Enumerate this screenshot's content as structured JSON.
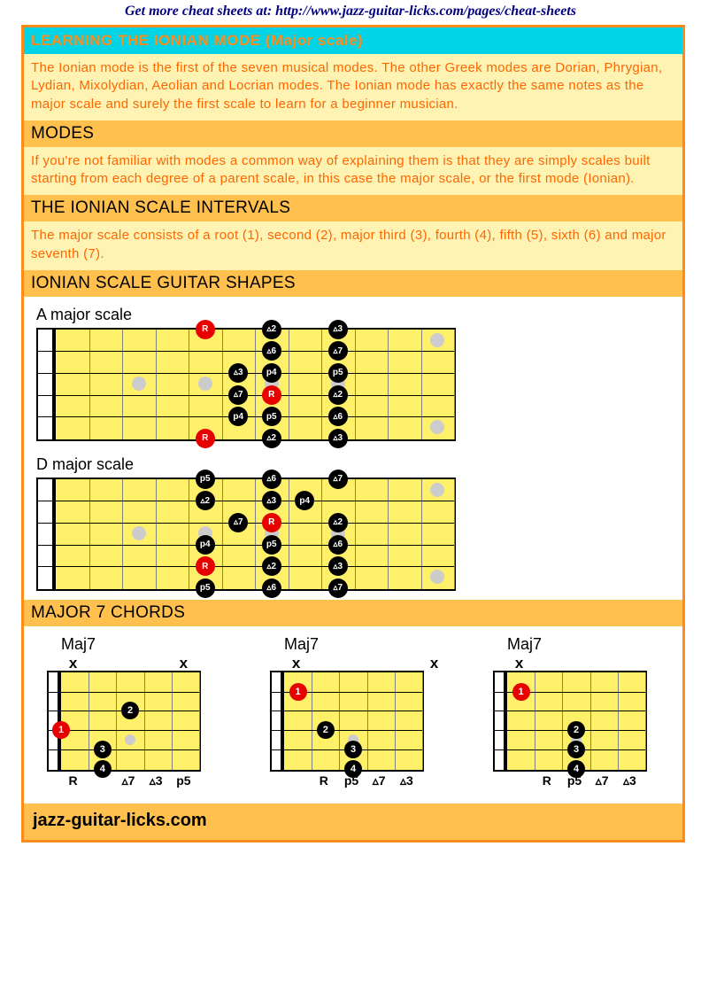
{
  "top_link": "Get more cheat sheets at: http://www.jazz-guitar-licks.com/pages/cheat-sheets",
  "title": "LEARNING THE IONIAN MODE (Major scale)",
  "intro_text": "The Ionian mode is the first of the seven musical modes. The other Greek modes are Dorian, Phrygian, Lydian, Mixolydian, Aeolian and Locrian modes. The Ionian mode has exactly the same notes as the major scale and surely the first scale to learn for a beginner musician.",
  "modes_hdr": "MODES",
  "modes_text": "If you're not familiar with modes a common way of explaining them is that they are simply scales built starting from each degree of a parent scale, in this case the major scale, or the first mode (Ionian).",
  "intervals_hdr": "THE IONIAN SCALE INTERVALS",
  "intervals_text": "The major scale consists of a root (1), second (2), major third (3), fourth (4), fifth (5), sixth (6) and major seventh (7).",
  "shapes_hdr": "IONIAN SCALE GUITAR SHAPES",
  "scaleA": {
    "title": "A major scale",
    "nfrets": 12,
    "marks": [
      [
        3,
        4
      ],
      [
        5,
        4
      ],
      [
        7,
        4
      ],
      [
        9,
        4
      ],
      [
        12,
        2
      ],
      [
        12,
        6
      ]
    ],
    "notes": [
      {
        "f": 5,
        "s": 1,
        "t": "R",
        "r": true
      },
      {
        "f": 7,
        "s": 1,
        "t": "▵2"
      },
      {
        "f": 9,
        "s": 1,
        "t": "▵3"
      },
      {
        "f": 7,
        "s": 2,
        "t": "▵6"
      },
      {
        "f": 9,
        "s": 2,
        "t": "▵7"
      },
      {
        "f": 6,
        "s": 3,
        "t": "▵3"
      },
      {
        "f": 7,
        "s": 3,
        "t": "p4"
      },
      {
        "f": 9,
        "s": 3,
        "t": "p5"
      },
      {
        "f": 6,
        "s": 4,
        "t": "▵7"
      },
      {
        "f": 7,
        "s": 4,
        "t": "R",
        "r": true
      },
      {
        "f": 9,
        "s": 4,
        "t": "▵2"
      },
      {
        "f": 6,
        "s": 5,
        "t": "p4"
      },
      {
        "f": 7,
        "s": 5,
        "t": "p5"
      },
      {
        "f": 9,
        "s": 5,
        "t": "▵6"
      },
      {
        "f": 5,
        "s": 6,
        "t": "R",
        "r": true
      },
      {
        "f": 7,
        "s": 6,
        "t": "▵2"
      },
      {
        "f": 9,
        "s": 6,
        "t": "▵3"
      }
    ]
  },
  "scaleD": {
    "title": "D major scale",
    "nfrets": 12,
    "marks": [
      [
        3,
        4
      ],
      [
        5,
        4
      ],
      [
        7,
        4
      ],
      [
        9,
        4
      ],
      [
        12,
        2
      ],
      [
        12,
        6
      ]
    ],
    "notes": [
      {
        "f": 5,
        "s": 1,
        "t": "p5"
      },
      {
        "f": 7,
        "s": 1,
        "t": "▵6"
      },
      {
        "f": 9,
        "s": 1,
        "t": "▵7"
      },
      {
        "f": 5,
        "s": 2,
        "t": "▵2"
      },
      {
        "f": 7,
        "s": 2,
        "t": "▵3"
      },
      {
        "f": 8,
        "s": 2,
        "t": "p4"
      },
      {
        "f": 6,
        "s": 3,
        "t": "▵7"
      },
      {
        "f": 7,
        "s": 3,
        "t": "R",
        "r": true
      },
      {
        "f": 9,
        "s": 3,
        "t": "▵2"
      },
      {
        "f": 5,
        "s": 4,
        "t": "p4"
      },
      {
        "f": 7,
        "s": 4,
        "t": "p5"
      },
      {
        "f": 9,
        "s": 4,
        "t": "▵6"
      },
      {
        "f": 5,
        "s": 5,
        "t": "R",
        "r": true
      },
      {
        "f": 7,
        "s": 5,
        "t": "▵2"
      },
      {
        "f": 9,
        "s": 5,
        "t": "▵3"
      },
      {
        "f": 5,
        "s": 6,
        "t": "p5"
      },
      {
        "f": 7,
        "s": 6,
        "t": "▵6"
      },
      {
        "f": 9,
        "s": 6,
        "t": "▵7"
      }
    ]
  },
  "chords_hdr": "MAJOR 7 CHORDS",
  "chords": [
    {
      "title": "Maj7",
      "nfrets": 5,
      "marks": [
        [
          3,
          4
        ]
      ],
      "above": [
        {
          "s": 0,
          "t": "x"
        },
        {
          "s": 4,
          "t": "x"
        }
      ],
      "dots": [
        {
          "f": 0.5,
          "s": 3,
          "t": "1",
          "r": true
        },
        {
          "f": 3,
          "s": 2,
          "t": "2"
        },
        {
          "f": 2,
          "s": 4,
          "t": "3"
        },
        {
          "f": 2,
          "s": 5,
          "t": "4"
        }
      ],
      "below": [
        {
          "s": 0,
          "t": "R"
        },
        {
          "s": 2,
          "t": "▵7"
        },
        {
          "s": 3,
          "t": "▵3"
        },
        {
          "s": 4,
          "t": "p5"
        }
      ]
    },
    {
      "title": "Maj7",
      "nfrets": 5,
      "marks": [
        [
          3,
          4
        ]
      ],
      "above": [
        {
          "s": 0,
          "t": "x"
        },
        {
          "s": 5,
          "t": "x"
        }
      ],
      "dots": [
        {
          "f": 1,
          "s": 1,
          "t": "1",
          "r": true
        },
        {
          "f": 2,
          "s": 3,
          "t": "2"
        },
        {
          "f": 3,
          "s": 4,
          "t": "3"
        },
        {
          "f": 3,
          "s": 5,
          "t": "4"
        }
      ],
      "below": [
        {
          "s": 1,
          "t": "R"
        },
        {
          "s": 2,
          "t": "p5"
        },
        {
          "s": 3,
          "t": "▵7"
        },
        {
          "s": 4,
          "t": "▵3"
        }
      ]
    },
    {
      "title": "Maj7",
      "nfrets": 5,
      "marks": [
        [
          3,
          4
        ]
      ],
      "above": [
        {
          "s": 0,
          "t": "x"
        }
      ],
      "dots": [
        {
          "f": 1,
          "s": 1,
          "t": "1",
          "r": true
        },
        {
          "f": 3,
          "s": 3,
          "t": "2"
        },
        {
          "f": 3,
          "s": 4,
          "t": "3"
        },
        {
          "f": 3,
          "s": 5,
          "t": "4"
        }
      ],
      "below": [
        {
          "s": 1,
          "t": "R"
        },
        {
          "s": 2,
          "t": "p5"
        },
        {
          "s": 3,
          "t": "▵7"
        },
        {
          "s": 4,
          "t": "▵3"
        }
      ]
    }
  ],
  "footer": "jazz-guitar-licks.com",
  "colors": {
    "accent": "#ff8c1a",
    "title_bg": "#00d4e6",
    "body_bg": "#fff3b3",
    "body_fg": "#ff6600",
    "hdr_bg": "#ffc04d",
    "fret_bg": "#fff06a",
    "root": "#e60000"
  }
}
